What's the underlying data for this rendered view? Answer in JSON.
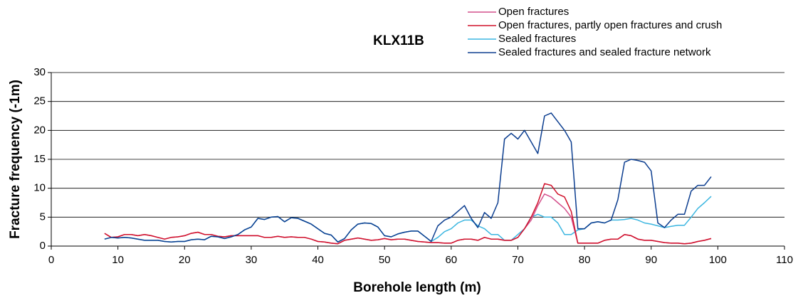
{
  "chart_data": {
    "type": "line",
    "title": "KLX11B",
    "x_label": "Borehole length (m)",
    "y_label": "Fracture frequency (-1m)",
    "xlim": [
      0,
      110
    ],
    "xticks": [
      0,
      10,
      20,
      30,
      40,
      50,
      60,
      70,
      80,
      90,
      100,
      110
    ],
    "ylim": [
      0,
      30
    ],
    "yticks": [
      0,
      5,
      10,
      15,
      20,
      25,
      30
    ],
    "grid": true,
    "x": [
      8,
      9,
      10,
      11,
      12,
      13,
      14,
      15,
      16,
      17,
      18,
      19,
      20,
      21,
      22,
      23,
      24,
      25,
      26,
      27,
      28,
      29,
      30,
      31,
      32,
      33,
      34,
      35,
      36,
      37,
      38,
      39,
      40,
      41,
      42,
      43,
      44,
      45,
      46,
      47,
      48,
      49,
      50,
      51,
      52,
      53,
      54,
      55,
      56,
      57,
      58,
      59,
      60,
      61,
      62,
      63,
      64,
      65,
      66,
      67,
      68,
      69,
      70,
      71,
      72,
      73,
      74,
      75,
      76,
      77,
      78,
      79,
      80,
      81,
      82,
      83,
      84,
      85,
      86,
      87,
      88,
      89,
      90,
      91,
      92,
      93,
      94,
      95,
      96,
      97,
      98,
      99
    ],
    "series": [
      {
        "name": "Open fractures",
        "color": "#d4508c",
        "values": [
          2.2,
          1.5,
          1.6,
          2.0,
          2.0,
          1.8,
          2.0,
          1.8,
          1.5,
          1.2,
          1.5,
          1.6,
          1.8,
          2.2,
          2.4,
          2.0,
          2.0,
          1.7,
          1.6,
          1.8,
          1.8,
          1.8,
          1.8,
          1.8,
          1.5,
          1.5,
          1.7,
          1.5,
          1.6,
          1.5,
          1.5,
          1.2,
          0.8,
          0.7,
          0.5,
          0.4,
          1.0,
          1.2,
          1.4,
          1.2,
          1.0,
          1.1,
          1.3,
          1.1,
          1.2,
          1.2,
          1.0,
          0.8,
          0.7,
          0.6,
          0.6,
          0.5,
          0.5,
          1.0,
          1.2,
          1.2,
          1.0,
          1.5,
          1.2,
          1.2,
          1.0,
          1.0,
          1.5,
          3.0,
          4.5,
          7.0,
          9.0,
          8.5,
          7.5,
          6.5,
          5.0,
          0.5,
          0.5,
          0.5,
          0.5,
          1.0,
          1.2,
          1.2,
          2.0,
          1.8,
          1.2,
          1.0,
          1.0,
          0.8,
          0.6,
          0.5,
          0.5,
          0.4,
          0.5,
          0.8,
          1.0,
          1.3
        ]
      },
      {
        "name": "Open fractures, partly open fractures and crush",
        "color": "#d0102a",
        "values": [
          2.2,
          1.5,
          1.6,
          2.0,
          2.0,
          1.8,
          2.0,
          1.8,
          1.5,
          1.2,
          1.5,
          1.6,
          1.8,
          2.2,
          2.4,
          2.0,
          2.0,
          1.7,
          1.6,
          1.8,
          1.8,
          1.8,
          1.8,
          1.8,
          1.5,
          1.5,
          1.7,
          1.5,
          1.6,
          1.5,
          1.5,
          1.2,
          0.8,
          0.7,
          0.5,
          0.4,
          1.0,
          1.2,
          1.4,
          1.2,
          1.0,
          1.1,
          1.3,
          1.1,
          1.2,
          1.2,
          1.0,
          0.8,
          0.7,
          0.6,
          0.6,
          0.5,
          0.5,
          1.0,
          1.2,
          1.2,
          1.0,
          1.5,
          1.2,
          1.2,
          1.0,
          1.0,
          1.5,
          3.0,
          5.0,
          7.5,
          10.8,
          10.5,
          9.0,
          8.5,
          6.0,
          0.5,
          0.5,
          0.5,
          0.5,
          1.0,
          1.2,
          1.2,
          2.0,
          1.8,
          1.2,
          1.0,
          1.0,
          0.8,
          0.6,
          0.5,
          0.5,
          0.4,
          0.5,
          0.8,
          1.0,
          1.3
        ]
      },
      {
        "name": "Sealed fractures",
        "color": "#3bb6e0",
        "values": [
          1.2,
          1.5,
          1.4,
          1.5,
          1.4,
          1.2,
          1.0,
          1.0,
          1.0,
          0.8,
          0.7,
          0.8,
          0.8,
          1.1,
          1.2,
          1.1,
          1.7,
          1.6,
          1.3,
          1.6,
          2.0,
          2.8,
          3.3,
          4.8,
          4.6,
          5.0,
          5.1,
          4.2,
          4.9,
          4.8,
          4.3,
          3.8,
          3.0,
          2.2,
          1.9,
          0.7,
          1.3,
          2.8,
          3.8,
          4.0,
          3.9,
          3.3,
          1.8,
          1.6,
          2.1,
          2.4,
          2.6,
          2.6,
          1.7,
          0.8,
          1.5,
          2.5,
          3.0,
          4.0,
          4.5,
          4.5,
          3.5,
          3.0,
          2.0,
          2.0,
          1.0,
          1.0,
          2.0,
          3.0,
          5.0,
          5.5,
          5.0,
          5.0,
          4.0,
          2.0,
          2.0,
          2.8,
          3.0,
          4.0,
          4.2,
          4.0,
          4.5,
          4.5,
          4.6,
          4.8,
          4.5,
          4.0,
          3.8,
          3.5,
          3.2,
          3.4,
          3.6,
          3.6,
          5.0,
          6.5,
          7.5,
          8.6
        ]
      },
      {
        "name": "Sealed fractures and sealed fracture network",
        "color": "#0b3d8f",
        "values": [
          1.2,
          1.5,
          1.4,
          1.5,
          1.4,
          1.2,
          1.0,
          1.0,
          1.0,
          0.8,
          0.7,
          0.8,
          0.8,
          1.1,
          1.2,
          1.1,
          1.7,
          1.6,
          1.3,
          1.6,
          2.0,
          2.8,
          3.3,
          4.8,
          4.6,
          5.0,
          5.1,
          4.2,
          4.9,
          4.8,
          4.3,
          3.8,
          3.0,
          2.2,
          1.9,
          0.7,
          1.3,
          2.8,
          3.8,
          4.0,
          3.9,
          3.3,
          1.8,
          1.6,
          2.1,
          2.4,
          2.6,
          2.6,
          1.7,
          0.8,
          3.5,
          4.5,
          5.0,
          6.0,
          7.0,
          4.8,
          3.2,
          5.8,
          4.8,
          7.5,
          18.5,
          19.5,
          18.5,
          20.0,
          18.0,
          16.0,
          22.5,
          23.0,
          21.5,
          20.0,
          18.0,
          3.0,
          3.0,
          4.0,
          4.2,
          4.0,
          4.5,
          8.0,
          14.5,
          15.0,
          14.8,
          14.5,
          13.0,
          4.0,
          3.2,
          4.5,
          5.5,
          5.5,
          9.5,
          10.5,
          10.5,
          12.0
        ]
      }
    ]
  }
}
